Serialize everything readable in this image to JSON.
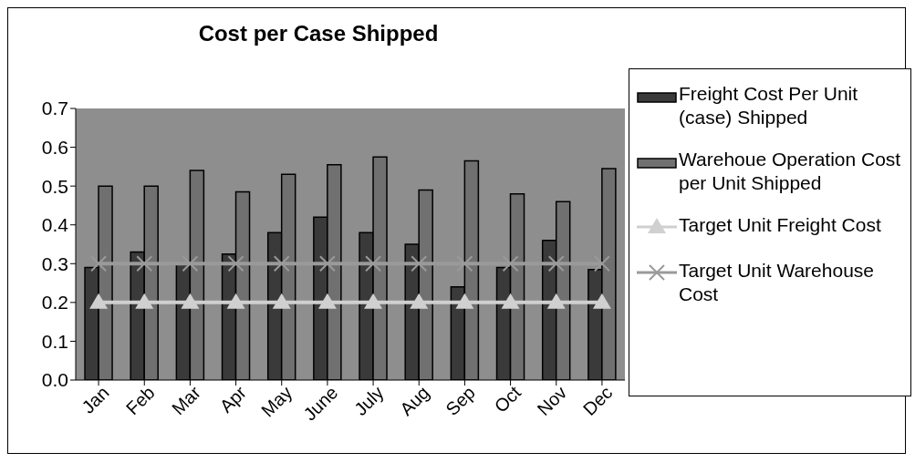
{
  "chart_data": {
    "type": "bar",
    "title": "Cost per Case Shipped",
    "categories": [
      "Jan",
      "Feb",
      "Mar",
      "Apr",
      "May",
      "June",
      "July",
      "Aug",
      "Sep",
      "Oct",
      "Nov",
      "Dec"
    ],
    "series": [
      {
        "name": "Freight Cost Per Unit (case) Shipped",
        "color": "#3a3a3a",
        "values": [
          0.29,
          0.33,
          0.3,
          0.325,
          0.38,
          0.42,
          0.38,
          0.35,
          0.24,
          0.29,
          0.36,
          0.285
        ]
      },
      {
        "name": "Warehoue Operation Cost per Unit Shipped",
        "color": "#707070",
        "values": [
          0.5,
          0.5,
          0.54,
          0.485,
          0.53,
          0.555,
          0.575,
          0.49,
          0.565,
          0.48,
          0.46,
          0.545
        ]
      },
      {
        "name": "Target Unit Freight Cost",
        "type": "line",
        "marker": "triangle",
        "color": "#d0d0d0",
        "values": [
          0.2,
          0.2,
          0.2,
          0.2,
          0.2,
          0.2,
          0.2,
          0.2,
          0.2,
          0.2,
          0.2,
          0.2
        ]
      },
      {
        "name": "Target Unit Warehouse Cost",
        "type": "line",
        "marker": "cross",
        "color": "#9a9a9a",
        "values": [
          0.3,
          0.3,
          0.3,
          0.3,
          0.3,
          0.3,
          0.3,
          0.3,
          0.3,
          0.3,
          0.3,
          0.3
        ]
      }
    ],
    "ylim": [
      0,
      0.7
    ],
    "yticks": [
      {
        "value": 0,
        "label": "0.0"
      },
      0.1,
      0.2,
      0.3,
      0.4,
      0.5,
      0.6,
      0.7
    ],
    "legend": "right"
  }
}
